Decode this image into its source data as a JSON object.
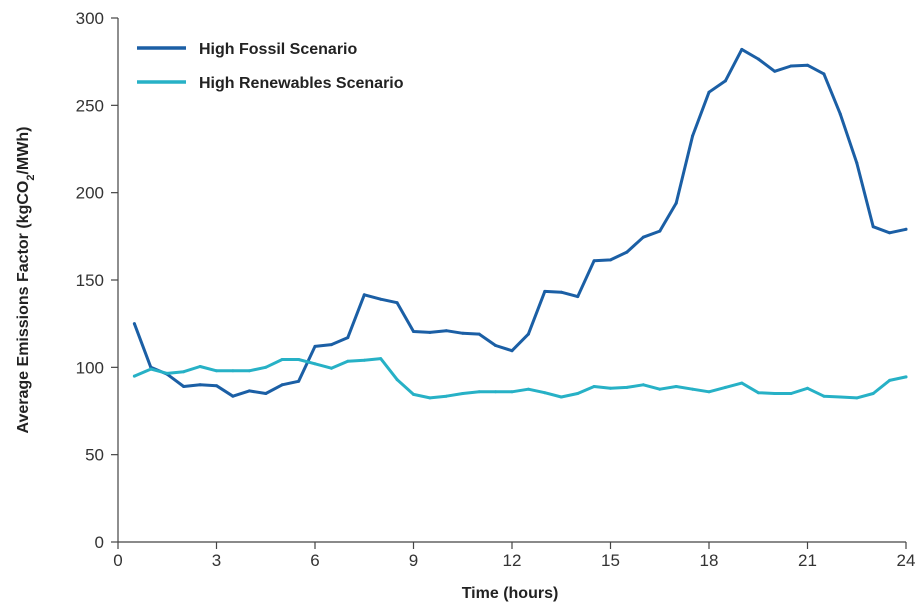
{
  "chart_data": {
    "type": "line",
    "title": "",
    "xlabel": "Time (hours)",
    "ylabel": {
      "prefix": "Average Emissions Factor (kgCO",
      "subscript": "2",
      "suffix": "/MWh)"
    },
    "xlim": [
      0,
      24
    ],
    "ylim": [
      0,
      300
    ],
    "xticks": [
      0,
      3,
      6,
      9,
      12,
      15,
      18,
      21,
      24
    ],
    "yticks": [
      0,
      50,
      100,
      150,
      200,
      250,
      300
    ],
    "grid": false,
    "legend_position": "top-left",
    "x": [
      0.5,
      1,
      1.5,
      2,
      2.5,
      3,
      3.5,
      4,
      4.5,
      5,
      5.5,
      6,
      6.5,
      7,
      7.5,
      8,
      8.5,
      9,
      9.5,
      10,
      10.5,
      11,
      11.5,
      12,
      12.5,
      13,
      13.5,
      14,
      14.5,
      15,
      15.5,
      16,
      16.5,
      17,
      17.5,
      18,
      18.5,
      19,
      19.5,
      20,
      20.5,
      21,
      21.5,
      22,
      22.5,
      23,
      23.5,
      24
    ],
    "series": [
      {
        "name": "High Fossil Scenario",
        "color": "#1b5fa5",
        "values": [
          125,
          100,
          96,
          89,
          90,
          89.5,
          83.5,
          86.5,
          85,
          90,
          92,
          112,
          113,
          117,
          141.5,
          139,
          137,
          120.5,
          120,
          121,
          119.5,
          119,
          112.5,
          109.5,
          119,
          143.5,
          143,
          140.5,
          161,
          161.5,
          166,
          174.5,
          178,
          194,
          232.5,
          257.5,
          264,
          282,
          276.5,
          269.5,
          272.5,
          273,
          268,
          245,
          217,
          180.5,
          177,
          179
        ]
      },
      {
        "name": "High Renewables Scenario",
        "color": "#27b1c6",
        "values": [
          95,
          99,
          96.5,
          97.5,
          100.5,
          98,
          98,
          98,
          100,
          104.5,
          104.5,
          102,
          99.5,
          103.5,
          104,
          105,
          93,
          84.5,
          82.5,
          83.5,
          85,
          86,
          86,
          86,
          87.5,
          85.5,
          83,
          85,
          89,
          88,
          88.5,
          90,
          87.5,
          89,
          87.5,
          86,
          88.5,
          91,
          85.5,
          85,
          85,
          88,
          83.5,
          83,
          82.5,
          85,
          92.5,
          94.5
        ]
      }
    ]
  }
}
